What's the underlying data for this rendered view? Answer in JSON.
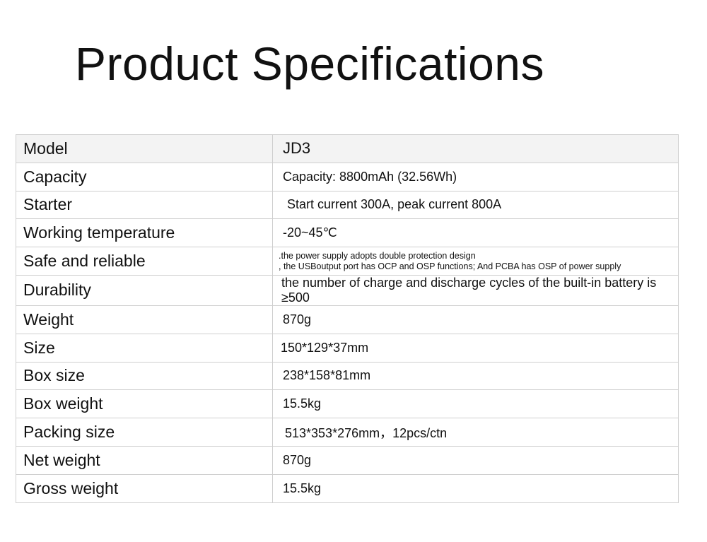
{
  "title": "Product Specifications",
  "specs": [
    {
      "label": "Model",
      "value": "JD3"
    },
    {
      "label": "Capacity",
      "value": "Capacity: 8800mAh (32.56Wh)"
    },
    {
      "label": "Starter",
      "value": "Start current 300A, peak current 800A"
    },
    {
      "label": "Working temperature",
      "value": "-20~45℃"
    },
    {
      "label": "Safe and reliable",
      "value_lines": [
        ".the power supply adopts double protection design",
        ", the USBoutput port has OCP and OSP functions; And PCBA has OSP of power supply"
      ]
    },
    {
      "label": "Durability",
      "value": "the number of charge and discharge cycles of the built-in battery is ≥500"
    },
    {
      "label": "Weight",
      "value": "870g"
    },
    {
      "label": "Size",
      "value": "150*129*37mm"
    },
    {
      "label": "Box size",
      "value": "238*158*81mm"
    },
    {
      "label": "Box weight",
      "value": "15.5kg"
    },
    {
      "label": "Packing size",
      "value": "513*353*276mm，12pcs/ctn"
    },
    {
      "label": "Net weight",
      "value": "870g"
    },
    {
      "label": "Gross weight",
      "value": "15.5kg"
    }
  ]
}
